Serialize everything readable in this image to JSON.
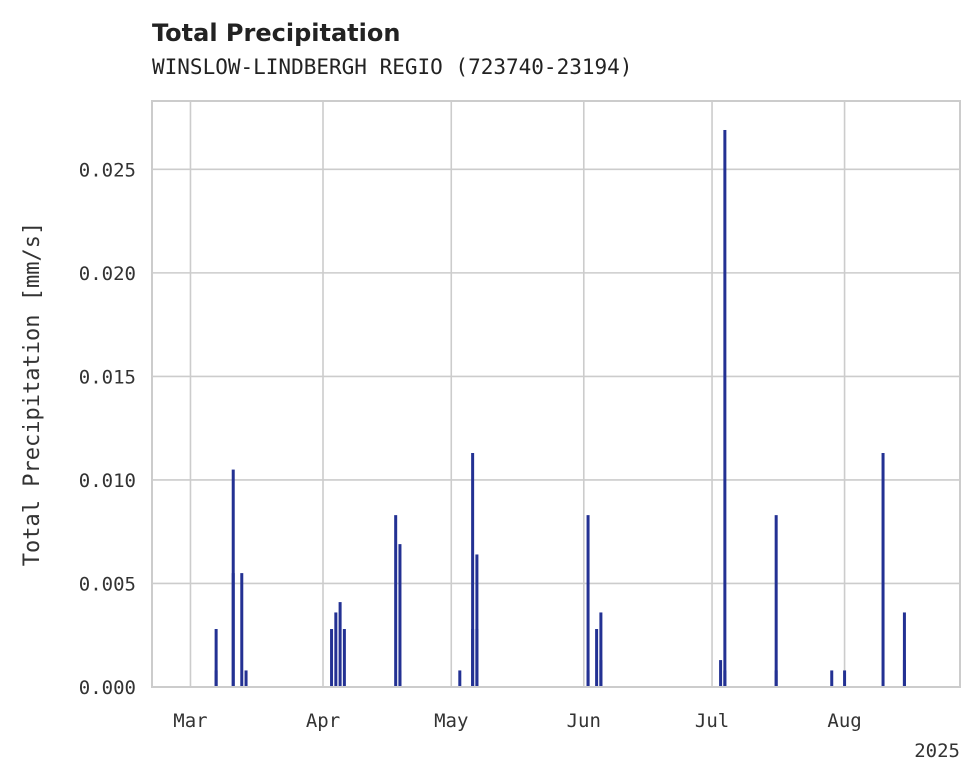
{
  "chart_data": {
    "type": "bar",
    "title": "Total Precipitation",
    "subtitle": "WINSLOW-LINDBERGH REGIO (723740-23194)",
    "xlabel": "",
    "ylabel": "Total Precipitation [mm/s]",
    "year_label": "2025",
    "xlim": [
      "2025-02-20",
      "2025-08-28"
    ],
    "ylim": [
      0,
      0.0283
    ],
    "grid": true,
    "x_ticks": [
      {
        "date": "2025-03-01",
        "label": "Mar"
      },
      {
        "date": "2025-04-01",
        "label": "Apr"
      },
      {
        "date": "2025-05-01",
        "label": "May"
      },
      {
        "date": "2025-06-01",
        "label": "Jun"
      },
      {
        "date": "2025-07-01",
        "label": "Jul"
      },
      {
        "date": "2025-08-01",
        "label": "Aug"
      }
    ],
    "y_ticks": [
      {
        "value": 0,
        "label": "0.000"
      },
      {
        "value": 0.005,
        "label": "0.005"
      },
      {
        "value": 0.01,
        "label": "0.010"
      },
      {
        "value": 0.015,
        "label": "0.015"
      },
      {
        "value": 0.02,
        "label": "0.020"
      },
      {
        "value": 0.025,
        "label": "0.025"
      }
    ],
    "series": [
      {
        "name": "Total Precipitation",
        "color": "#233193",
        "points": [
          {
            "x": "2025-03-07",
            "y": 0.0008
          },
          {
            "x": "2025-03-07",
            "y": 0.0028
          },
          {
            "x": "2025-03-11",
            "y": 0.0055
          },
          {
            "x": "2025-03-11",
            "y": 0.0105
          },
          {
            "x": "2025-03-13",
            "y": 0.0055
          },
          {
            "x": "2025-03-14",
            "y": 0.0008
          },
          {
            "x": "2025-04-03",
            "y": 0.0028
          },
          {
            "x": "2025-04-04",
            "y": 0.0036
          },
          {
            "x": "2025-04-05",
            "y": 0.0041
          },
          {
            "x": "2025-04-06",
            "y": 0.0028
          },
          {
            "x": "2025-04-18",
            "y": 0.0083
          },
          {
            "x": "2025-04-19",
            "y": 0.0069
          },
          {
            "x": "2025-04-19",
            "y": 0.0008
          },
          {
            "x": "2025-05-03",
            "y": 0.0008
          },
          {
            "x": "2025-05-06",
            "y": 0.0113
          },
          {
            "x": "2025-05-06",
            "y": 0.0028
          },
          {
            "x": "2025-05-07",
            "y": 0.0064
          },
          {
            "x": "2025-05-07",
            "y": 0.0028
          },
          {
            "x": "2025-06-02",
            "y": 0.0083
          },
          {
            "x": "2025-06-02",
            "y": 0.0008
          },
          {
            "x": "2025-06-04",
            "y": 0.0028
          },
          {
            "x": "2025-06-05",
            "y": 0.0013
          },
          {
            "x": "2025-06-05",
            "y": 0.0036
          },
          {
            "x": "2025-07-03",
            "y": 0.0013
          },
          {
            "x": "2025-07-04",
            "y": 0.0269
          },
          {
            "x": "2025-07-04",
            "y": 0.0008
          },
          {
            "x": "2025-07-16",
            "y": 0.0083
          },
          {
            "x": "2025-07-16",
            "y": 0.0008
          },
          {
            "x": "2025-07-29",
            "y": 0.0008
          },
          {
            "x": "2025-08-01",
            "y": 0.0008
          },
          {
            "x": "2025-08-10",
            "y": 0.0113
          },
          {
            "x": "2025-08-15",
            "y": 0.0036
          },
          {
            "x": "2025-08-15",
            "y": 0.0013
          }
        ]
      }
    ]
  }
}
